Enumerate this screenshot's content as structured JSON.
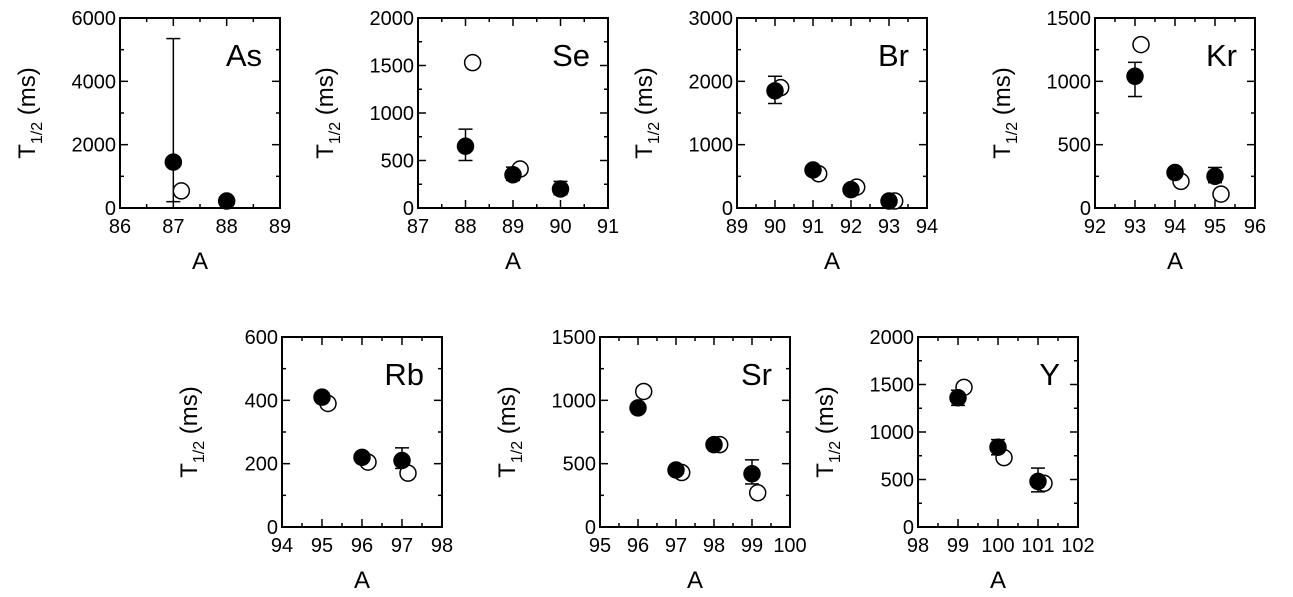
{
  "chart_data": [
    {
      "type": "scatter",
      "title": "As",
      "xlabel": "A",
      "ylabel_main": "T",
      "ylabel_sub": "1/2",
      "ylabel_unit": "(ms)",
      "xlim": [
        86,
        89
      ],
      "ylim": [
        0,
        6000
      ],
      "xticks": [
        86,
        87,
        88,
        89
      ],
      "xticklabels": [
        "86",
        "87",
        "88",
        "89"
      ],
      "yticks": [
        0,
        2000,
        4000,
        6000
      ],
      "yticklabels": [
        "0",
        "2000",
        "4000",
        "6000"
      ],
      "series": [
        {
          "marker": "filled",
          "points": [
            {
              "x": 87,
              "y": 1450,
              "err_low": 1250,
              "err_high": 3900
            },
            {
              "x": 88,
              "y": 220,
              "err_low": 60,
              "err_high": 130
            }
          ]
        },
        {
          "marker": "open",
          "points": [
            {
              "x": 87.15,
              "y": 540
            }
          ]
        }
      ]
    },
    {
      "type": "scatter",
      "title": "Se",
      "xlabel": "A",
      "ylabel_main": "T",
      "ylabel_sub": "1/2",
      "ylabel_unit": "(ms)",
      "xlim": [
        87,
        91
      ],
      "ylim": [
        0,
        2000
      ],
      "xticks": [
        87,
        88,
        89,
        90,
        91
      ],
      "xticklabels": [
        "87",
        "88",
        "89",
        "90",
        "91"
      ],
      "yticks": [
        0,
        500,
        1000,
        1500,
        2000
      ],
      "yticklabels": [
        "0",
        "500",
        "1000",
        "1500",
        "2000"
      ],
      "series": [
        {
          "marker": "filled",
          "points": [
            {
              "x": 88,
              "y": 650,
              "err_low": 150,
              "err_high": 180
            },
            {
              "x": 89,
              "y": 350,
              "err_low": 60,
              "err_high": 80
            },
            {
              "x": 90,
              "y": 200,
              "err_low": 60,
              "err_high": 80
            }
          ]
        },
        {
          "marker": "open",
          "points": [
            {
              "x": 88.15,
              "y": 1530
            },
            {
              "x": 89.15,
              "y": 410
            }
          ]
        }
      ]
    },
    {
      "type": "scatter",
      "title": "Br",
      "xlabel": "A",
      "ylabel_main": "T",
      "ylabel_sub": "1/2",
      "ylabel_unit": "(ms)",
      "xlim": [
        89,
        94
      ],
      "ylim": [
        0,
        3000
      ],
      "xticks": [
        89,
        90,
        91,
        92,
        93,
        94
      ],
      "xticklabels": [
        "89",
        "90",
        "91",
        "92",
        "93",
        "94"
      ],
      "yticks": [
        0,
        1000,
        2000,
        3000
      ],
      "yticklabels": [
        "0",
        "1000",
        "2000",
        "3000"
      ],
      "series": [
        {
          "marker": "filled",
          "points": [
            {
              "x": 90,
              "y": 1850,
              "err_low": 200,
              "err_high": 230
            },
            {
              "x": 91,
              "y": 600,
              "err_low": 40,
              "err_high": 40
            },
            {
              "x": 92,
              "y": 290,
              "err_low": 30,
              "err_high": 30
            },
            {
              "x": 93,
              "y": 110,
              "err_low": 20,
              "err_high": 20
            }
          ]
        },
        {
          "marker": "open",
          "points": [
            {
              "x": 90.15,
              "y": 1900
            },
            {
              "x": 91.15,
              "y": 540
            },
            {
              "x": 92.15,
              "y": 330
            },
            {
              "x": 93.15,
              "y": 110
            }
          ]
        }
      ]
    },
    {
      "type": "scatter",
      "title": "Kr",
      "xlabel": "A",
      "ylabel_main": "T",
      "ylabel_sub": "1/2",
      "ylabel_unit": "(ms)",
      "xlim": [
        92,
        96
      ],
      "ylim": [
        0,
        1500
      ],
      "xticks": [
        92,
        93,
        94,
        95,
        96
      ],
      "xticklabels": [
        "92",
        "93",
        "94",
        "95",
        "96"
      ],
      "yticks": [
        0,
        500,
        1000,
        1500
      ],
      "yticklabels": [
        "0",
        "500",
        "1000",
        "1500"
      ],
      "series": [
        {
          "marker": "filled",
          "points": [
            {
              "x": 93,
              "y": 1040,
              "err_low": 160,
              "err_high": 110
            },
            {
              "x": 94,
              "y": 280,
              "err_low": 30,
              "err_high": 30
            },
            {
              "x": 95,
              "y": 250,
              "err_low": 50,
              "err_high": 70
            }
          ]
        },
        {
          "marker": "open",
          "points": [
            {
              "x": 93.15,
              "y": 1290
            },
            {
              "x": 94.15,
              "y": 210
            },
            {
              "x": 95.15,
              "y": 110
            }
          ]
        }
      ]
    },
    {
      "type": "scatter",
      "title": "Rb",
      "xlabel": "A",
      "ylabel_main": "T",
      "ylabel_sub": "1/2",
      "ylabel_unit": "(ms)",
      "xlim": [
        94,
        98
      ],
      "ylim": [
        0,
        600
      ],
      "xticks": [
        94,
        95,
        96,
        97,
        98
      ],
      "xticklabels": [
        "94",
        "95",
        "96",
        "97",
        "98"
      ],
      "yticks": [
        0,
        200,
        400,
        600
      ],
      "yticklabels": [
        "0",
        "200",
        "400",
        "600"
      ],
      "series": [
        {
          "marker": "filled",
          "points": [
            {
              "x": 95,
              "y": 410,
              "err_low": 10,
              "err_high": 10
            },
            {
              "x": 96,
              "y": 220,
              "err_low": 10,
              "err_high": 10
            },
            {
              "x": 97,
              "y": 210,
              "err_low": 25,
              "err_high": 40
            }
          ]
        },
        {
          "marker": "open",
          "points": [
            {
              "x": 95.15,
              "y": 390
            },
            {
              "x": 96.15,
              "y": 205
            },
            {
              "x": 97.15,
              "y": 170
            }
          ]
        }
      ]
    },
    {
      "type": "scatter",
      "title": "Sr",
      "xlabel": "A",
      "ylabel_main": "T",
      "ylabel_sub": "1/2",
      "ylabel_unit": "(ms)",
      "xlim": [
        95,
        100
      ],
      "ylim": [
        0,
        1500
      ],
      "xticks": [
        95,
        96,
        97,
        98,
        99,
        100
      ],
      "xticklabels": [
        "95",
        "96",
        "97",
        "98",
        "99",
        "100"
      ],
      "yticks": [
        0,
        500,
        1000,
        1500
      ],
      "yticklabels": [
        "0",
        "500",
        "1000",
        "1500"
      ],
      "series": [
        {
          "marker": "filled",
          "points": [
            {
              "x": 96,
              "y": 940,
              "err_low": 20,
              "err_high": 20
            },
            {
              "x": 97,
              "y": 450,
              "err_low": 15,
              "err_high": 15
            },
            {
              "x": 98,
              "y": 650,
              "err_low": 20,
              "err_high": 20
            },
            {
              "x": 99,
              "y": 420,
              "err_low": 80,
              "err_high": 110
            }
          ]
        },
        {
          "marker": "open",
          "points": [
            {
              "x": 96.15,
              "y": 1070
            },
            {
              "x": 97.15,
              "y": 430
            },
            {
              "x": 98.15,
              "y": 650
            },
            {
              "x": 99.15,
              "y": 270
            }
          ]
        }
      ]
    },
    {
      "type": "scatter",
      "title": "Y",
      "xlabel": "A",
      "ylabel_main": "T",
      "ylabel_sub": "1/2",
      "ylabel_unit": "(ms)",
      "xlim": [
        98,
        102
      ],
      "ylim": [
        0,
        2000
      ],
      "xticks": [
        98,
        99,
        100,
        101,
        102
      ],
      "xticklabels": [
        "98",
        "99",
        "100",
        "101",
        "102"
      ],
      "yticks": [
        0,
        500,
        1000,
        1500,
        2000
      ],
      "yticklabels": [
        "0",
        "500",
        "1000",
        "1500",
        "2000"
      ],
      "series": [
        {
          "marker": "filled",
          "points": [
            {
              "x": 99,
              "y": 1360,
              "err_low": 80,
              "err_high": 80
            },
            {
              "x": 100,
              "y": 840,
              "err_low": 80,
              "err_high": 80
            },
            {
              "x": 101,
              "y": 480,
              "err_low": 110,
              "err_high": 140
            }
          ]
        },
        {
          "marker": "open",
          "points": [
            {
              "x": 99.15,
              "y": 1470
            },
            {
              "x": 100.15,
              "y": 730
            },
            {
              "x": 101.15,
              "y": 460
            }
          ]
        }
      ]
    }
  ]
}
